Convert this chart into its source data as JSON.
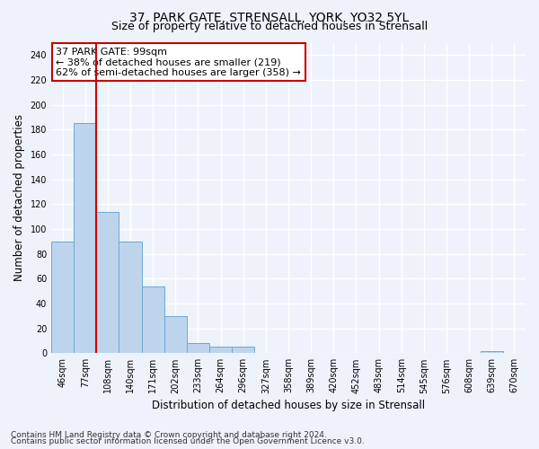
{
  "title_line1": "37, PARK GATE, STRENSALL, YORK, YO32 5YL",
  "title_line2": "Size of property relative to detached houses in Strensall",
  "xlabel": "Distribution of detached houses by size in Strensall",
  "ylabel": "Number of detached properties",
  "bar_labels": [
    "46sqm",
    "77sqm",
    "108sqm",
    "140sqm",
    "171sqm",
    "202sqm",
    "233sqm",
    "264sqm",
    "296sqm",
    "327sqm",
    "358sqm",
    "389sqm",
    "420sqm",
    "452sqm",
    "483sqm",
    "514sqm",
    "545sqm",
    "576sqm",
    "608sqm",
    "639sqm",
    "670sqm"
  ],
  "bar_values": [
    90,
    185,
    114,
    90,
    54,
    30,
    8,
    5,
    5,
    0,
    0,
    0,
    0,
    0,
    0,
    0,
    0,
    0,
    0,
    2,
    0
  ],
  "bar_color": "#bdd4ec",
  "bar_edge_color": "#6aaad4",
  "highlight_bar_index": 1,
  "highlight_line_color": "#cc0000",
  "annotation_line1": "37 PARK GATE: 99sqm",
  "annotation_line2": "← 38% of detached houses are smaller (219)",
  "annotation_line3": "62% of semi-detached houses are larger (358) →",
  "annotation_box_color": "#ffffff",
  "annotation_border_color": "#cc0000",
  "ylim": [
    0,
    250
  ],
  "yticks": [
    0,
    20,
    40,
    60,
    80,
    100,
    120,
    140,
    160,
    180,
    200,
    220,
    240
  ],
  "footer_line1": "Contains HM Land Registry data © Crown copyright and database right 2024.",
  "footer_line2": "Contains public sector information licensed under the Open Government Licence v3.0.",
  "bg_color": "#eef2fa",
  "plot_bg_color": "#eef2fa",
  "grid_color": "#ffffff",
  "title1_fontsize": 10,
  "title2_fontsize": 9,
  "axis_label_fontsize": 8.5,
  "tick_fontsize": 7,
  "footer_fontsize": 6.5,
  "annotation_fontsize": 8
}
